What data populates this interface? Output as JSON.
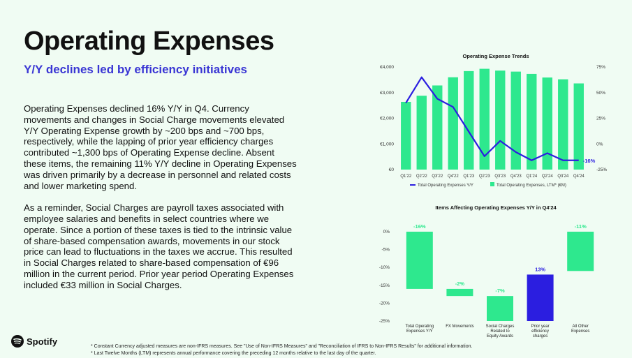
{
  "header": {
    "title": "Operating Expenses",
    "subtitle": "Y/Y declines led by efficiency initiatives"
  },
  "body": {
    "paragraphs": [
      "Operating Expenses declined 16% Y/Y in Q4. Currency movements and changes in Social Charge movements elevated Y/Y Operating Expense growth by ~200 bps and ~700 bps, respectively, while the lapping of prior year efficiency charges contributed ~1,300 bps of Operating Expense decline. Absent these items, the remaining 11% Y/Y decline in Operating Expenses was driven primarily by a decrease in personnel and related costs and lower marketing spend.",
      "As a reminder, Social Charges are payroll taxes associated with employee salaries and benefits in select countries where we operate. Since a portion of these taxes is tied to the intrinsic value of share-based compensation awards, movements in our stock price can lead to fluctuations in the taxes we accrue. This resulted in Social Charges related to share-based compensation of €96 million in the current period. Prior year period Operating Expenses included €33 million in Social Charges."
    ]
  },
  "logo": {
    "name": "Spotify"
  },
  "footnotes": [
    "* Constant Currency adjusted measures are non-IFRS measures. See \"Use of Non-IFRS Measures\" and \"Reconciliation of IFRS to Non-IFRS Results\" for additional information.",
    "* Last Twelve Months (LTM) represents annual performance covering the preceding 12 months relative to the last day of the quarter."
  ],
  "colors": {
    "green": "#2ee88e",
    "blue": "#2b1ee0",
    "purple": "#3a36d4"
  },
  "chart_data": [
    {
      "type": "bar",
      "title": "Operating Expense Trends",
      "categories": [
        "Q1'22",
        "Q2'22",
        "Q3'22",
        "Q4'22",
        "Q1'23",
        "Q2'23",
        "Q3'23",
        "Q4'23",
        "Q1'24",
        "Q2'24",
        "Q3'24",
        "Q4'24"
      ],
      "y_ticks": [
        "€4,000",
        "€3,000",
        "€2,000",
        "€1,000",
        "€0"
      ],
      "y2_ticks": [
        "75%",
        "50%",
        "25%",
        "0%",
        "-25%"
      ],
      "ylim": [
        0,
        4000
      ],
      "y2lim": [
        -25,
        75
      ],
      "end_label": "-16%",
      "series": [
        {
          "name": "Total Operating Expenses, LTM* (€M)",
          "kind": "bar",
          "values": [
            2640,
            2880,
            3280,
            3600,
            3840,
            3930,
            3860,
            3820,
            3730,
            3590,
            3520,
            3360
          ]
        },
        {
          "name": "Total Operating Expenses Y/Y",
          "kind": "line",
          "axis": "right",
          "values": [
            40,
            65,
            44,
            36,
            12,
            -12,
            3,
            -8,
            -16,
            -9,
            -16,
            -16
          ]
        }
      ]
    },
    {
      "type": "bar",
      "subtype": "waterfall",
      "title": "Items Affecting Operating Expenses Y/Y in Q4'24",
      "y_ticks": [
        "0%",
        "-5%",
        "-10%",
        "-15%",
        "-20%",
        "-25%"
      ],
      "ylim": [
        -25,
        0
      ],
      "bars": [
        {
          "label": "Total Operating Expenses Y/Y",
          "value_label": "-16%",
          "start": 0,
          "end": -16,
          "color": "green"
        },
        {
          "label": "FX Movements",
          "value_label": "-2%",
          "start": -16,
          "end": -18,
          "color": "green"
        },
        {
          "label": "Social Charges Related to Equity Awards",
          "value_label": "-7%",
          "start": -18,
          "end": -25,
          "color": "green"
        },
        {
          "label": "Prior year efficiency charges",
          "value_label": "13%",
          "start": -25,
          "end": -12,
          "color": "blue"
        },
        {
          "label": "All Other Expenses",
          "value_label": "-11%",
          "start": -11,
          "end": 0,
          "color": "green"
        }
      ]
    }
  ]
}
